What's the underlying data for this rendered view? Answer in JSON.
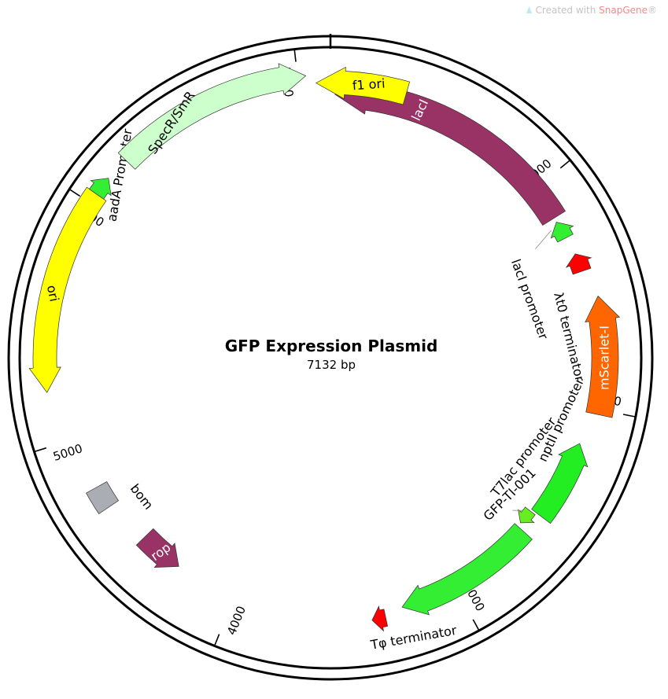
{
  "watermark": {
    "prefix": "Created with ",
    "brand": "SnapGene",
    "suffix": "®"
  },
  "plasmid": {
    "name": "GFP Expression Plasmid",
    "length_label": "7132 bp",
    "length": 7132
  },
  "ticks": [
    {
      "bp": 1000,
      "label": "1000"
    },
    {
      "bp": 2000,
      "label": "2000"
    },
    {
      "bp": 3000,
      "label": "3000"
    },
    {
      "bp": 4000,
      "label": "4000"
    },
    {
      "bp": 5000,
      "label": "5000"
    },
    {
      "bp": 6000,
      "label": "6000"
    },
    {
      "bp": 7000,
      "label": "7000"
    }
  ],
  "features": [
    {
      "id": "laci",
      "label": "lacI",
      "color": "#993366",
      "label_color": "#ffffff",
      "label_inside": true
    },
    {
      "id": "laci-promoter",
      "label": "lacI promoter",
      "color": "#33ee33",
      "label_color": "#000000",
      "label_inside": false
    },
    {
      "id": "lt0-terminator",
      "label": "λt0 terminator",
      "color": "#ff0000",
      "label_color": "#000000",
      "label_inside": false
    },
    {
      "id": "mscarlet",
      "label": "mScarlet-I",
      "color": "#ff6600",
      "label_color": "#ffffff",
      "label_inside": true
    },
    {
      "id": "nptii-promoter",
      "label": "nptII promoter",
      "color": "#22ee22",
      "label_color": "#000000",
      "label_inside": false
    },
    {
      "id": "t7lac-promoter",
      "label": "T7lac promoter",
      "color": "#66ee22",
      "label_color": "#000000",
      "label_inside": false
    },
    {
      "id": "gfp",
      "label": "GFP-TI-001",
      "color": "#33ee33",
      "label_color": "#000000",
      "label_inside": false
    },
    {
      "id": "tphi-terminator",
      "label": "Tφ terminator",
      "color": "#ff0000",
      "label_color": "#000000",
      "label_inside": false
    },
    {
      "id": "rop",
      "label": "rop",
      "color": "#993366",
      "label_color": "#ffffff",
      "label_inside": true
    },
    {
      "id": "bom",
      "label": "bom",
      "color": "#aaaeb4",
      "label_color": "#000000",
      "label_inside": false
    },
    {
      "id": "ori",
      "label": "ori",
      "color": "#ffff00",
      "label_color": "#000000",
      "label_inside": true
    },
    {
      "id": "aada-promoter",
      "label": "aadA Promoter",
      "color": "#33ee33",
      "label_color": "#000000",
      "label_inside": false
    },
    {
      "id": "specr",
      "label": "SpecR/SmR",
      "color": "#ccffcc",
      "label_color": "#000000",
      "label_inside": true
    },
    {
      "id": "f1-ori",
      "label": "f1 ori",
      "color": "#ffff00",
      "label_color": "#000000",
      "label_inside": true
    }
  ]
}
